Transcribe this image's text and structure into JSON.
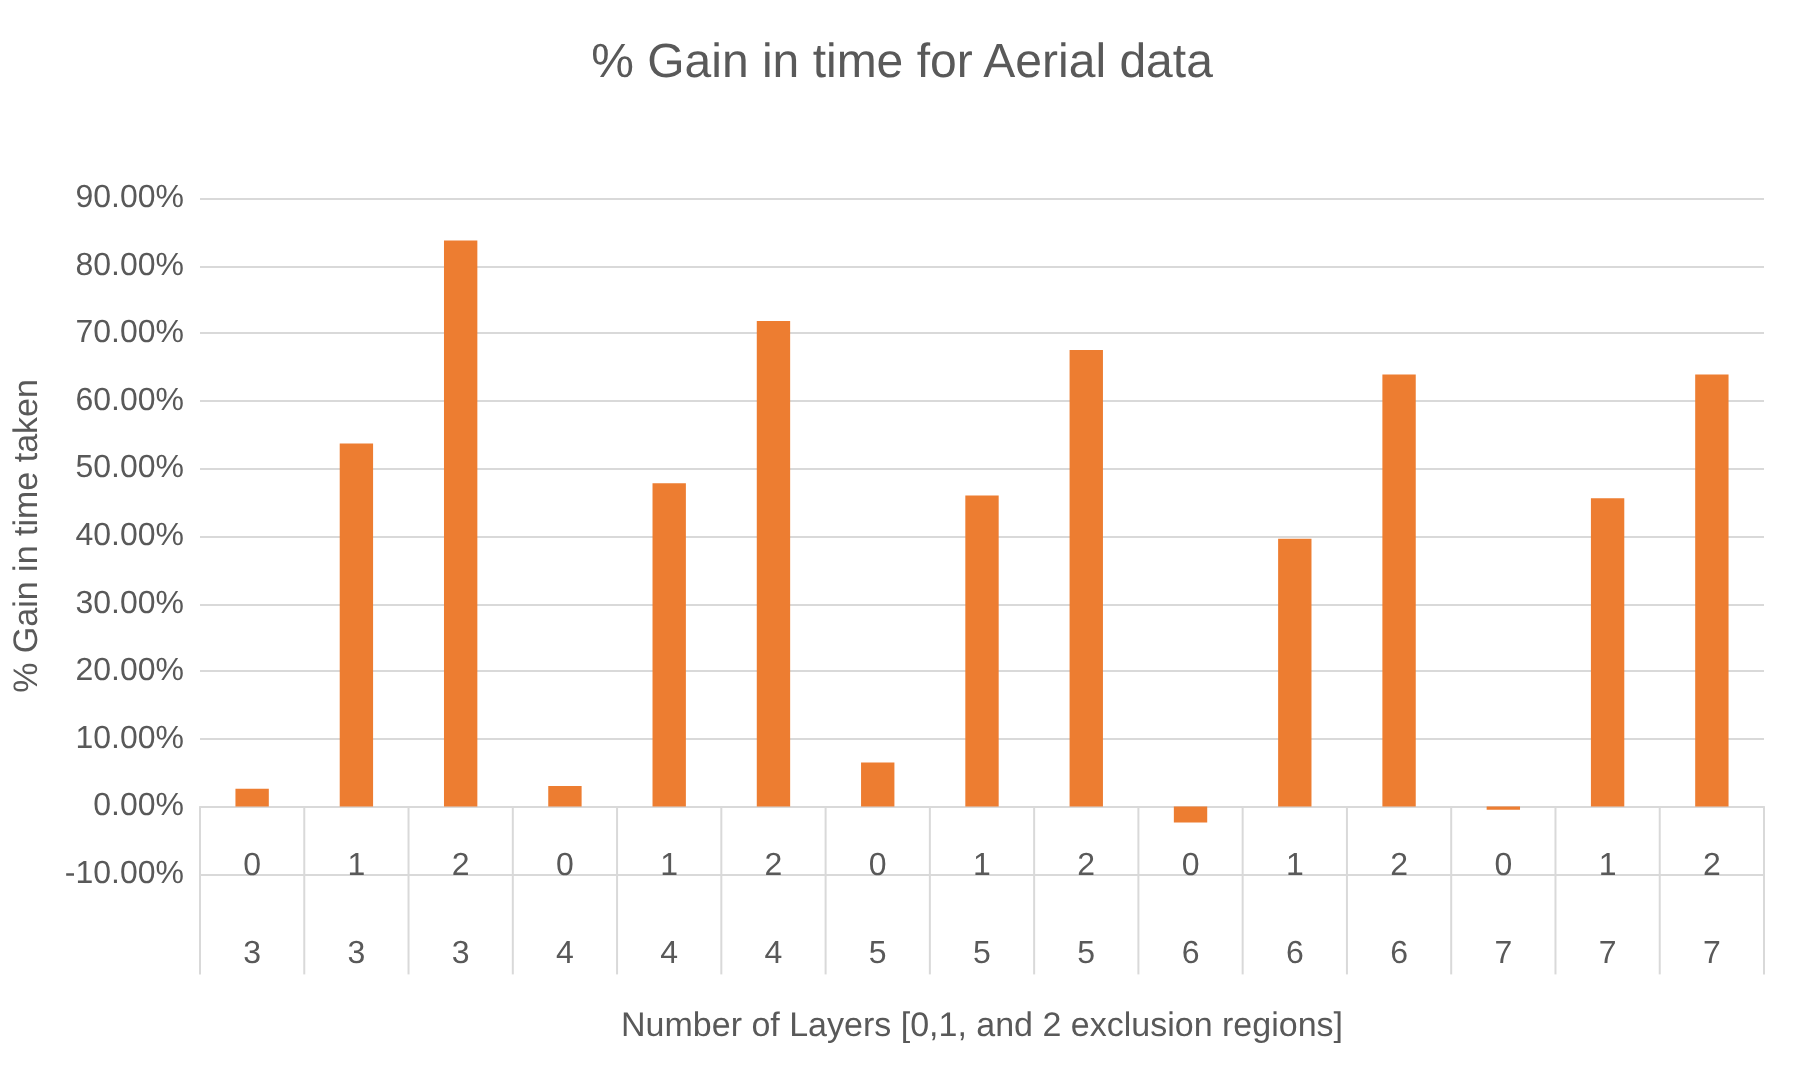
{
  "chart_data": {
    "type": "bar",
    "title": "% Gain in time for Aerial data",
    "xlabel": "Number of Layers [0,1, and 2 exclusion regions]",
    "ylabel": "% Gain in time taken",
    "categories": [
      "0\n3",
      "1\n3",
      "2\n3",
      "0\n4",
      "1\n4",
      "2\n4",
      "0\n5",
      "1\n5",
      "2\n5",
      "0\n6",
      "1\n6",
      "2\n6",
      "0\n7",
      "1\n7",
      "2\n7"
    ],
    "values": [
      2.6,
      53.7,
      83.7,
      3.0,
      47.8,
      71.8,
      6.5,
      46.0,
      67.5,
      -2.4,
      39.6,
      63.9,
      -0.5,
      45.6,
      63.9
    ],
    "color": "#ed7d31",
    "ylim": [
      -10,
      90
    ],
    "yticks": [
      {
        "value": -10,
        "label": "-10.00%"
      },
      {
        "value": 0,
        "label": "0.00%"
      },
      {
        "value": 10,
        "label": "10.00%"
      },
      {
        "value": 20,
        "label": "20.00%"
      },
      {
        "value": 30,
        "label": "30.00%"
      },
      {
        "value": 40,
        "label": "40.00%"
      },
      {
        "value": 50,
        "label": "50.00%"
      },
      {
        "value": 60,
        "label": "60.00%"
      },
      {
        "value": 70,
        "label": "70.00%"
      },
      {
        "value": 80,
        "label": "80.00%"
      },
      {
        "value": 90,
        "label": "90.00%"
      }
    ],
    "grid": "y"
  }
}
